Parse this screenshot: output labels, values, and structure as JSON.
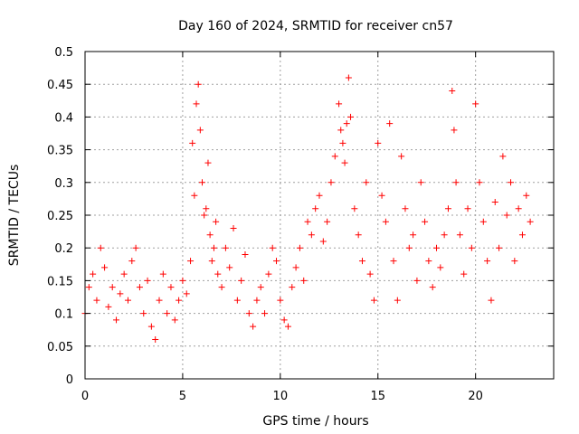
{
  "chart_data": {
    "type": "scatter",
    "title": "Day 160 of 2024, SRMTID for receiver cn57",
    "xlabel": "GPS time / hours",
    "ylabel": "SRMTID / TECUs",
    "xlim": [
      0,
      24
    ],
    "ylim": [
      0,
      0.5
    ],
    "xticks": [
      0,
      5,
      10,
      15,
      20
    ],
    "xtick_labels": [
      "0",
      "5",
      "10",
      "15",
      "20"
    ],
    "yticks": [
      0,
      0.05,
      0.1,
      0.15,
      0.2,
      0.25,
      0.3,
      0.35,
      0.4,
      0.45,
      0.5
    ],
    "ytick_labels": [
      "0",
      "0.05",
      "0.1",
      "0.15",
      "0.2",
      "0.25",
      "0.3",
      "0.35",
      "0.4",
      "0.45",
      "0.5"
    ],
    "grid": true,
    "marker": "plus",
    "color": "#ff0000",
    "series": [
      {
        "name": "SRMTID",
        "x": [
          0.0,
          0.2,
          0.4,
          0.6,
          0.8,
          1.0,
          1.2,
          1.4,
          1.6,
          1.8,
          2.0,
          2.2,
          2.4,
          2.6,
          2.8,
          3.0,
          3.2,
          3.4,
          3.6,
          3.8,
          4.0,
          4.2,
          4.4,
          4.6,
          4.8,
          5.0,
          5.2,
          5.4,
          5.5,
          5.6,
          5.7,
          5.8,
          5.9,
          6.0,
          6.1,
          6.2,
          6.3,
          6.4,
          6.5,
          6.6,
          6.7,
          6.8,
          7.0,
          7.2,
          7.4,
          7.6,
          7.8,
          8.0,
          8.2,
          8.4,
          8.6,
          8.8,
          9.0,
          9.2,
          9.4,
          9.6,
          9.8,
          10.0,
          10.2,
          10.4,
          10.6,
          10.8,
          11.0,
          11.2,
          11.4,
          11.6,
          11.8,
          12.0,
          12.2,
          12.4,
          12.6,
          12.8,
          13.0,
          13.1,
          13.2,
          13.3,
          13.4,
          13.5,
          13.6,
          13.8,
          14.0,
          14.2,
          14.4,
          14.6,
          14.8,
          15.0,
          15.2,
          15.4,
          15.6,
          15.8,
          16.0,
          16.2,
          16.4,
          16.6,
          16.8,
          17.0,
          17.2,
          17.4,
          17.6,
          17.8,
          18.0,
          18.2,
          18.4,
          18.6,
          18.8,
          18.9,
          19.0,
          19.2,
          19.4,
          19.6,
          19.8,
          20.0,
          20.2,
          20.4,
          20.6,
          20.8,
          21.0,
          21.2,
          21.4,
          21.6,
          21.8,
          22.0,
          22.2,
          22.4,
          22.6,
          22.8
        ],
        "y": [
          0.1,
          0.14,
          0.16,
          0.12,
          0.2,
          0.17,
          0.11,
          0.14,
          0.09,
          0.13,
          0.16,
          0.12,
          0.18,
          0.2,
          0.14,
          0.1,
          0.15,
          0.08,
          0.06,
          0.12,
          0.16,
          0.1,
          0.14,
          0.09,
          0.12,
          0.15,
          0.13,
          0.18,
          0.36,
          0.28,
          0.42,
          0.45,
          0.38,
          0.3,
          0.25,
          0.26,
          0.33,
          0.22,
          0.18,
          0.2,
          0.24,
          0.16,
          0.14,
          0.2,
          0.17,
          0.23,
          0.12,
          0.15,
          0.19,
          0.1,
          0.08,
          0.12,
          0.14,
          0.1,
          0.16,
          0.2,
          0.18,
          0.12,
          0.09,
          0.08,
          0.14,
          0.17,
          0.2,
          0.15,
          0.24,
          0.22,
          0.26,
          0.28,
          0.21,
          0.24,
          0.3,
          0.34,
          0.42,
          0.38,
          0.36,
          0.33,
          0.39,
          0.46,
          0.4,
          0.26,
          0.22,
          0.18,
          0.3,
          0.16,
          0.12,
          0.36,
          0.28,
          0.24,
          0.39,
          0.18,
          0.12,
          0.34,
          0.26,
          0.2,
          0.22,
          0.15,
          0.3,
          0.24,
          0.18,
          0.14,
          0.2,
          0.17,
          0.22,
          0.26,
          0.44,
          0.38,
          0.3,
          0.22,
          0.16,
          0.26,
          0.2,
          0.42,
          0.3,
          0.24,
          0.18,
          0.12,
          0.27,
          0.2,
          0.34,
          0.25,
          0.3,
          0.18,
          0.26,
          0.22,
          0.28,
          0.24
        ]
      }
    ]
  }
}
